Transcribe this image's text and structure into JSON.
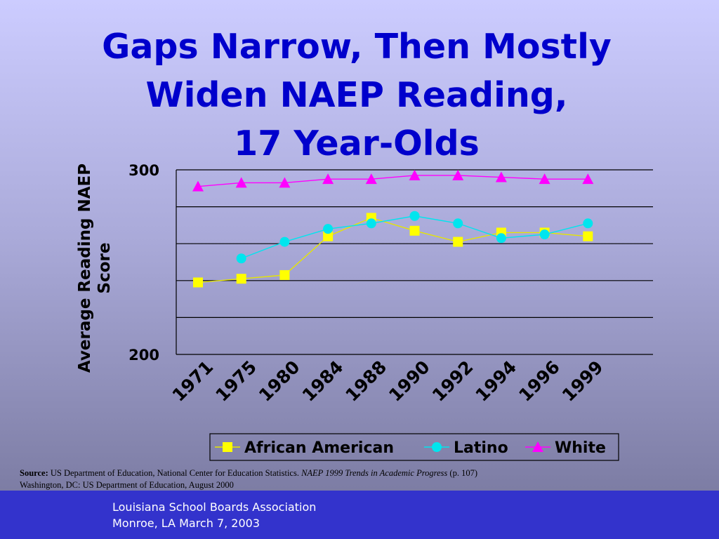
{
  "slide": {
    "title_lines": [
      "Gaps Narrow, Then Mostly",
      "Widen NAEP Reading,",
      "17 Year-Olds"
    ],
    "source": {
      "label": "Source:",
      "text_plain": "US Department of Education, National Center for Education Statistics.",
      "text_italic": "NAEP 1999 Trends in Academic Progress",
      "text_after": "(p. 107)",
      "line2": "Washington, DC: US  Department of Education, August 2000"
    },
    "footer": {
      "line1": "Louisiana School Boards Association",
      "line2": "Monroe, LA  March 7, 2003"
    }
  },
  "chart_data": {
    "type": "line",
    "title": "Gaps Narrow, Then Mostly Widen NAEP Reading, 17 Year-Olds",
    "xlabel": "",
    "ylabel": "Average Reading NAEP Score",
    "ylim": [
      200,
      300
    ],
    "y_tick_labels": [
      "300",
      "200"
    ],
    "grid": true,
    "legend_position": "bottom",
    "categories": [
      "1971",
      "1975",
      "1980",
      "1984",
      "1988",
      "1990",
      "1992",
      "1994",
      "1996",
      "1999"
    ],
    "series": [
      {
        "name": "African American",
        "color": "#ffff00",
        "line_color": "#e6e600",
        "marker": "square",
        "values": [
          239,
          241,
          243,
          264,
          274,
          267,
          261,
          266,
          266,
          264
        ]
      },
      {
        "name": "Latino",
        "color": "#00e5ee",
        "line_color": "#00e5ee",
        "marker": "circle",
        "values": [
          null,
          252,
          261,
          268,
          271,
          275,
          271,
          263,
          265,
          271
        ]
      },
      {
        "name": "White",
        "color": "#ff00ff",
        "line_color": "#ff00ff",
        "marker": "triangle",
        "values": [
          291,
          293,
          293,
          295,
          295,
          297,
          297,
          296,
          295,
          295
        ]
      }
    ]
  }
}
